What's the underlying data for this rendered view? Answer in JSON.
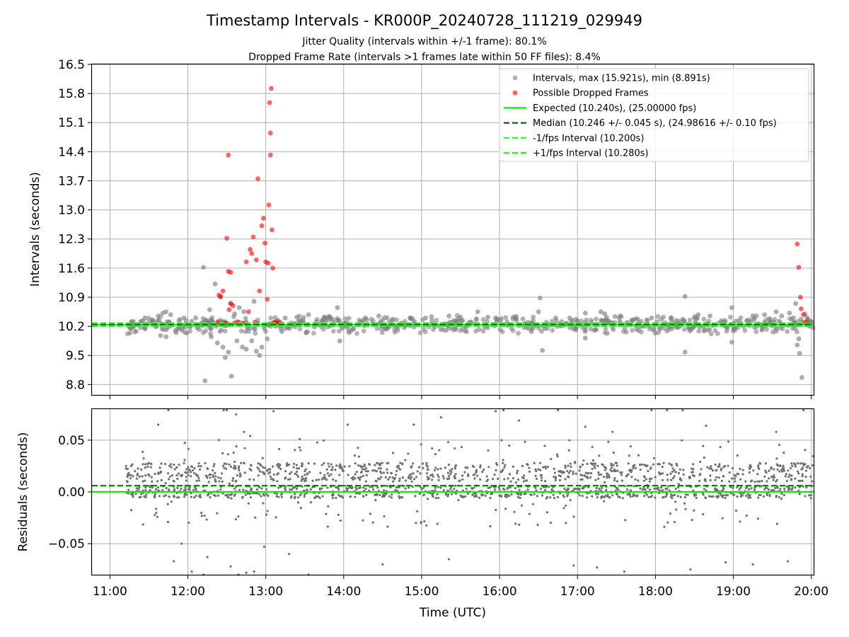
{
  "chart_data": [
    {
      "type": "scatter",
      "panel": "top",
      "title": "Timestamp Intervals - KR000P_20240728_111219_029949",
      "subtitle_lines": [
        "Jitter Quality (intervals within +/-1 frame): 80.1%",
        "Dropped Frame Rate (intervals >1 frames late within 50 FF files): 8.4%"
      ],
      "ylabel": "Intervals (seconds)",
      "xlabel": "",
      "xlim": [
        10.77,
        20.03
      ],
      "ylim": [
        8.55,
        16.5
      ],
      "yticks": [
        8.8,
        9.5,
        10.2,
        10.9,
        11.6,
        12.3,
        13.0,
        13.7,
        14.4,
        15.1,
        15.8,
        16.5
      ],
      "ytick_labels": [
        "8.8",
        "9.5",
        "10.2",
        "10.9",
        "11.6",
        "12.3",
        "13.0",
        "13.7",
        "14.4",
        "15.1",
        "15.8",
        "16.5"
      ],
      "grid": true,
      "legend_position": "top-right",
      "legend": [
        {
          "label": "Intervals, max (15.921s), min (8.891s)",
          "kind": "marker",
          "color": "#808080"
        },
        {
          "label": "Possible Dropped Frames",
          "kind": "marker",
          "color": "#ff0000"
        },
        {
          "label": "Expected (10.240s), (25.00000 fps)",
          "kind": "line",
          "style": "solid",
          "color": "#00ee00"
        },
        {
          "label": "Median (10.246 +/- 0.045 s), (24.98616 +/- 0.10 fps)",
          "kind": "line",
          "style": "dashed",
          "color": "#006400"
        },
        {
          "label": "-1/fps Interval (10.200s)",
          "kind": "line",
          "style": "dashed",
          "color": "#22ff22"
        },
        {
          "label": "+1/fps Interval (10.280s)",
          "kind": "line",
          "style": "dashed",
          "color": "#22ff22"
        }
      ],
      "reference_lines": [
        {
          "name": "expected",
          "y": 10.24,
          "style": "solid",
          "color": "#00ee00"
        },
        {
          "name": "median",
          "y": 10.246,
          "style": "dashed",
          "color": "#006400"
        },
        {
          "name": "minus-1-fps",
          "y": 10.2,
          "style": "dashed",
          "color": "#22ff22"
        },
        {
          "name": "plus-1-fps",
          "y": 10.28,
          "style": "dashed",
          "color": "#22ff22"
        }
      ],
      "series": [
        {
          "name": "Intervals",
          "color": "#808080",
          "note": "dense band around 10.2 s from 11:15 to 20:05; scattered outliers",
          "points": [
            [
              11.3,
              10.32
            ],
            [
              11.45,
              10.4
            ],
            [
              11.55,
              10.35
            ],
            [
              11.62,
              10.45
            ],
            [
              11.68,
              10.52
            ],
            [
              11.72,
              10.55
            ],
            [
              11.78,
              10.48
            ],
            [
              11.65,
              9.98
            ],
            [
              11.72,
              9.95
            ],
            [
              11.85,
              10.05
            ],
            [
              11.95,
              10.4
            ],
            [
              12.05,
              10.32
            ],
            [
              12.1,
              10.4
            ],
            [
              12.2,
              11.62
            ],
            [
              12.22,
              8.89
            ],
            [
              12.28,
              10.6
            ],
            [
              12.3,
              9.95
            ],
            [
              12.35,
              11.22
            ],
            [
              12.38,
              9.8
            ],
            [
              12.42,
              10.9
            ],
            [
              12.45,
              9.7
            ],
            [
              12.48,
              9.45
            ],
            [
              12.52,
              9.58
            ],
            [
              12.55,
              10.75
            ],
            [
              12.56,
              9.0
            ],
            [
              12.6,
              10.5
            ],
            [
              12.63,
              9.85
            ],
            [
              12.66,
              10.65
            ],
            [
              12.7,
              9.7
            ],
            [
              12.72,
              10.55
            ],
            [
              12.75,
              9.65
            ],
            [
              12.78,
              10.08
            ],
            [
              12.82,
              9.85
            ],
            [
              12.85,
              10.8
            ],
            [
              12.88,
              9.6
            ],
            [
              12.92,
              9.5
            ],
            [
              12.95,
              9.7
            ],
            [
              12.98,
              10.15
            ],
            [
              13.02,
              9.9
            ],
            [
              13.25,
              10.4
            ],
            [
              13.4,
              10.42
            ],
            [
              13.55,
              10.48
            ],
            [
              13.75,
              10.42
            ],
            [
              13.92,
              10.65
            ],
            [
              13.95,
              9.85
            ],
            [
              14.2,
              10.35
            ],
            [
              14.28,
              10.4
            ],
            [
              14.45,
              10.45
            ],
            [
              14.62,
              10.35
            ],
            [
              14.85,
              10.4
            ],
            [
              15.05,
              10.4
            ],
            [
              15.35,
              10.45
            ],
            [
              15.5,
              10.42
            ],
            [
              15.72,
              10.55
            ],
            [
              15.85,
              10.42
            ],
            [
              15.95,
              10.4
            ],
            [
              16.3,
              10.38
            ],
            [
              16.5,
              10.55
            ],
            [
              16.52,
              10.88
            ],
            [
              16.55,
              9.62
            ],
            [
              16.72,
              10.4
            ],
            [
              16.9,
              10.4
            ],
            [
              17.1,
              10.52
            ],
            [
              17.1,
              9.92
            ],
            [
              17.3,
              10.55
            ],
            [
              17.35,
              10.5
            ],
            [
              17.55,
              10.45
            ],
            [
              17.7,
              10.35
            ],
            [
              17.75,
              10.38
            ],
            [
              17.95,
              10.4
            ],
            [
              18.1,
              10.42
            ],
            [
              18.2,
              10.4
            ],
            [
              18.38,
              10.92
            ],
            [
              18.38,
              9.58
            ],
            [
              18.55,
              10.48
            ],
            [
              18.7,
              10.45
            ],
            [
              18.98,
              10.65
            ],
            [
              18.98,
              9.82
            ],
            [
              19.25,
              10.45
            ],
            [
              19.4,
              10.48
            ],
            [
              19.55,
              10.55
            ],
            [
              19.62,
              10.45
            ],
            [
              19.72,
              10.52
            ],
            [
              19.78,
              10.3
            ],
            [
              19.8,
              10.75
            ],
            [
              19.82,
              9.75
            ],
            [
              19.84,
              9.9
            ],
            [
              19.85,
              9.55
            ],
            [
              19.88,
              8.97
            ],
            [
              19.92,
              10.5
            ],
            [
              19.96,
              10.35
            ],
            [
              19.98,
              10.2
            ]
          ]
        },
        {
          "name": "Possible Dropped Frames",
          "color": "#ff0000",
          "note": "red markers above 10.3 s",
          "points": [
            [
              12.38,
              10.3
            ],
            [
              12.4,
              10.95
            ],
            [
              12.42,
              10.92
            ],
            [
              12.45,
              11.05
            ],
            [
              12.48,
              10.28
            ],
            [
              12.5,
              12.32
            ],
            [
              12.52,
              14.32
            ],
            [
              12.52,
              11.52
            ],
            [
              12.55,
              11.5
            ],
            [
              12.53,
              10.6
            ],
            [
              12.55,
              10.75
            ],
            [
              12.58,
              10.7
            ],
            [
              12.6,
              10.28
            ],
            [
              12.65,
              10.3
            ],
            [
              12.7,
              10.28
            ],
            [
              12.75,
              11.75
            ],
            [
              12.78,
              10.55
            ],
            [
              12.8,
              12.05
            ],
            [
              12.82,
              11.95
            ],
            [
              12.84,
              12.35
            ],
            [
              12.86,
              10.3
            ],
            [
              12.88,
              11.8
            ],
            [
              12.9,
              13.75
            ],
            [
              12.92,
              11.05
            ],
            [
              12.95,
              12.62
            ],
            [
              12.97,
              12.8
            ],
            [
              12.99,
              12.2
            ],
            [
              13.0,
              11.75
            ],
            [
              13.02,
              10.85
            ],
            [
              13.03,
              11.72
            ],
            [
              13.04,
              13.12
            ],
            [
              13.05,
              15.58
            ],
            [
              13.06,
              14.85
            ],
            [
              13.06,
              14.32
            ],
            [
              13.07,
              15.92
            ],
            [
              13.08,
              12.52
            ],
            [
              13.09,
              11.6
            ],
            [
              13.1,
              10.28
            ],
            [
              13.12,
              10.3
            ],
            [
              13.15,
              10.28
            ],
            [
              13.18,
              10.3
            ],
            [
              19.82,
              12.18
            ],
            [
              19.84,
              11.62
            ],
            [
              19.86,
              10.9
            ],
            [
              19.87,
              10.62
            ],
            [
              19.9,
              10.48
            ],
            [
              19.92,
              10.3
            ],
            [
              19.95,
              10.28
            ]
          ]
        }
      ]
    },
    {
      "type": "scatter",
      "panel": "bottom",
      "title": "",
      "xlabel": "Time (UTC)",
      "ylabel": "Residuals (seconds)",
      "xlim": [
        10.77,
        20.03
      ],
      "ylim": [
        -0.08,
        0.08
      ],
      "yticks": [
        -0.05,
        0.0,
        0.05
      ],
      "ytick_labels": [
        "−0.05",
        "0.00",
        "0.05"
      ],
      "xticks": [
        11,
        12,
        13,
        14,
        15,
        16,
        17,
        18,
        19,
        20
      ],
      "xtick_labels": [
        "11:00",
        "12:00",
        "13:00",
        "14:00",
        "15:00",
        "16:00",
        "17:00",
        "18:00",
        "19:00",
        "20:00"
      ],
      "grid": true,
      "reference_lines": [
        {
          "name": "zero",
          "y": 0.0,
          "style": "solid",
          "color": "#00ee00"
        },
        {
          "name": "median-offset",
          "y": 0.006,
          "style": "dashed",
          "color": "#006400"
        }
      ],
      "series": [
        {
          "name": "Residuals",
          "color": "#707070",
          "note": "dense cloud of small grey points between about -0.02 and +0.03 s spanning 11:15 to 20:05, with sparse outliers up to +/-0.08 s",
          "x_range": [
            11.2,
            20.03
          ],
          "band": [
            -0.02,
            0.032
          ],
          "outlier_points": [
            [
              11.75,
              0.079
            ],
            [
              11.62,
              0.065
            ],
            [
              11.82,
              -0.067
            ],
            [
              11.92,
              -0.05
            ],
            [
              12.05,
              -0.077
            ],
            [
              12.2,
              -0.08
            ],
            [
              12.25,
              -0.063
            ],
            [
              12.46,
              0.079
            ],
            [
              12.5,
              0.079
            ],
            [
              12.62,
              0.075
            ],
            [
              12.55,
              -0.072
            ],
            [
              12.65,
              -0.08
            ],
            [
              12.75,
              -0.078
            ],
            [
              12.85,
              -0.077
            ],
            [
              12.72,
              0.058
            ],
            [
              12.8,
              0.054
            ],
            [
              12.98,
              -0.053
            ],
            [
              13.1,
              0.078
            ],
            [
              13.3,
              -0.06
            ],
            [
              13.55,
              -0.08
            ],
            [
              14.05,
              0.065
            ],
            [
              14.5,
              -0.07
            ],
            [
              14.9,
              0.065
            ],
            [
              15.25,
              0.072
            ],
            [
              15.35,
              -0.065
            ],
            [
              15.95,
              0.078
            ],
            [
              16.05,
              0.079
            ],
            [
              16.25,
              0.069
            ],
            [
              16.75,
              0.079
            ],
            [
              16.95,
              -0.071
            ],
            [
              17.1,
              0.063
            ],
            [
              17.25,
              -0.073
            ],
            [
              17.45,
              0.058
            ],
            [
              17.6,
              -0.077
            ],
            [
              17.95,
              0.079
            ],
            [
              18.15,
              0.079
            ],
            [
              18.35,
              0.079
            ],
            [
              18.45,
              -0.075
            ],
            [
              18.65,
              0.064
            ],
            [
              18.9,
              -0.068
            ],
            [
              19.25,
              -0.07
            ],
            [
              19.55,
              0.058
            ],
            [
              19.7,
              -0.067
            ],
            [
              19.9,
              0.079
            ]
          ]
        }
      ]
    }
  ]
}
